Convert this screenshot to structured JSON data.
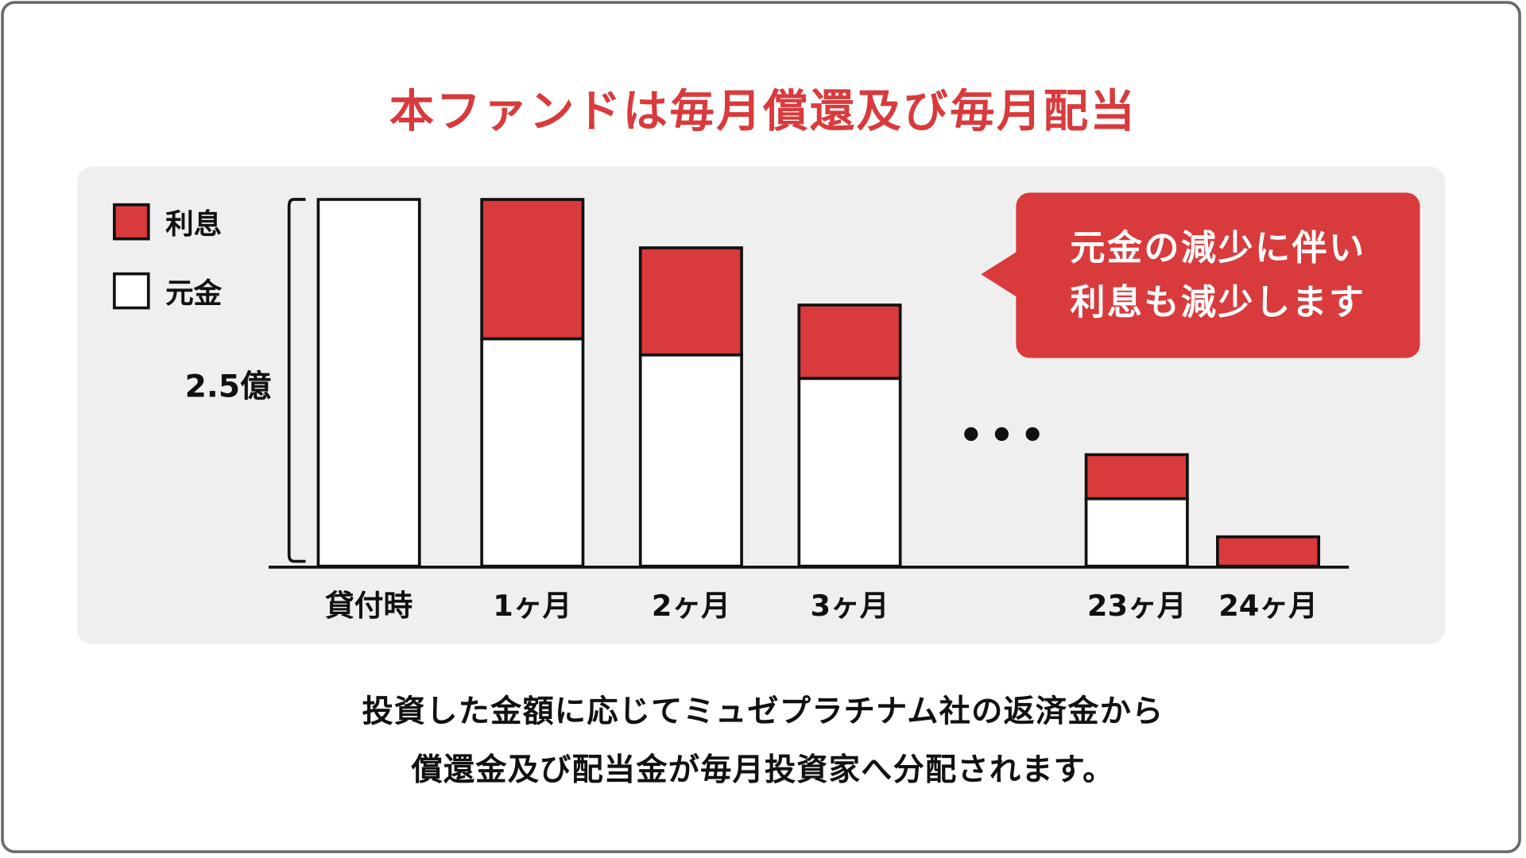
{
  "title": "本ファンドは毎月償還及び毎月配当",
  "colors": {
    "interest": "#d93a3c",
    "principal": "#ffffff",
    "panel": "#efefef",
    "outline": "#111111"
  },
  "chart_data": {
    "type": "bar",
    "stacked": true,
    "categories": [
      "貸付時",
      "1ヶ月",
      "2ヶ月",
      "3ヶ月",
      "23ヶ月",
      "24ヶ月"
    ],
    "series": [
      {
        "name": "元金",
        "values": [
          2.5,
          1.55,
          1.44,
          1.28,
          0.46,
          0
        ]
      },
      {
        "name": "利息",
        "values": [
          0,
          0.95,
          0.73,
          0.5,
          0.3,
          0.2
        ]
      }
    ],
    "ylabel": "2.5億",
    "ylim": [
      0,
      2.5
    ],
    "grid": false,
    "legend_position": "top-left",
    "ellipsis": "•••",
    "annotation": [
      "元金の減少に伴い",
      "利息も減少します"
    ]
  },
  "caption": [
    "投資した金額に応じてミュゼプラチナム社の返済金から",
    "償還金及び配当金が毎月投資家へ分配されます。"
  ]
}
